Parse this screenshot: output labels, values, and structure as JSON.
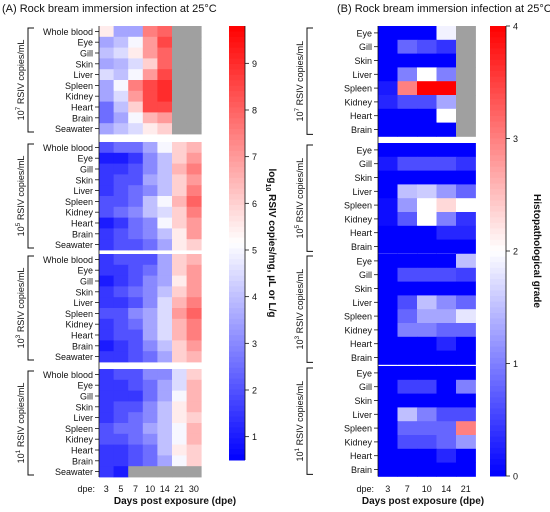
{
  "chart_data": [
    {
      "type": "heatmap",
      "title": "(A) Rock bream immersion infection at 25°C",
      "xlabel": "Days post exposure (dpe)",
      "x_prefix": "dpe:",
      "x": [
        "3",
        "5",
        "7",
        "10",
        "14",
        "21",
        "30"
      ],
      "rows": [
        "Whole blood",
        "Eye",
        "Gill",
        "Skin",
        "Liver",
        "Spleen",
        "Kidney",
        "Heart",
        "Brain",
        "Seawater"
      ],
      "colorbar": {
        "label": "log10 RSIV copies/mg, µL or L/g",
        "label_main": "log",
        "label_sub": "10",
        "label_rest": " RSIV copies/mg, µL or L/g",
        "min": 0.5,
        "max": 9.8,
        "ticks": [
          1,
          2,
          3,
          4,
          5,
          6,
          7,
          8,
          9
        ],
        "colors": {
          "low": "#0000ff",
          "mid": "#ffffff",
          "high": "#ff0000",
          "na": "#a0a0a0"
        }
      },
      "groups": [
        {
          "label_pre": "10",
          "label_exp": "7",
          "label_post": " RSIV copies/mL",
          "values": [
            [
              5.5,
              3.5,
              3.5,
              7.5,
              8.0,
              null,
              null
            ],
            [
              3.5,
              4.0,
              5.0,
              7.0,
              8.5,
              null,
              null
            ],
            [
              4.0,
              4.5,
              5.5,
              7.0,
              8.0,
              null,
              null
            ],
            [
              3.5,
              3.8,
              4.5,
              6.0,
              8.0,
              null,
              null
            ],
            [
              4.5,
              4.0,
              5.0,
              7.0,
              8.5,
              null,
              null
            ],
            [
              3.5,
              5.0,
              7.5,
              8.5,
              9.0,
              null,
              null
            ],
            [
              3.5,
              4.5,
              7.0,
              8.5,
              9.0,
              null,
              null
            ],
            [
              2.5,
              4.0,
              6.0,
              8.5,
              8.5,
              null,
              null
            ],
            [
              2.5,
              3.5,
              5.0,
              6.5,
              7.0,
              null,
              null
            ],
            [
              3.5,
              4.0,
              4.5,
              5.5,
              6.0,
              null,
              null
            ]
          ]
        },
        {
          "label_pre": "10",
          "label_exp": "5",
          "label_post": " RSIV copies/mL",
          "values": [
            [
              2.0,
              2.5,
              2.5,
              3.5,
              5.0,
              6.0,
              6.5
            ],
            [
              1.0,
              1.0,
              1.5,
              3.0,
              4.0,
              6.0,
              7.0
            ],
            [
              1.5,
              1.5,
              2.0,
              3.0,
              4.0,
              6.5,
              7.5
            ],
            [
              1.5,
              2.0,
              2.0,
              3.5,
              4.0,
              6.0,
              7.0
            ],
            [
              1.5,
              2.0,
              2.5,
              3.0,
              4.0,
              6.0,
              7.5
            ],
            [
              2.0,
              2.0,
              2.5,
              4.0,
              5.0,
              6.5,
              8.0
            ],
            [
              2.0,
              2.5,
              3.0,
              4.0,
              4.5,
              6.0,
              7.5
            ],
            [
              1.0,
              1.5,
              2.5,
              3.0,
              5.0,
              6.0,
              7.0
            ],
            [
              1.5,
              2.0,
              2.5,
              3.0,
              4.0,
              5.5,
              7.0
            ],
            [
              1.5,
              2.0,
              2.0,
              2.5,
              3.5,
              5.5,
              6.0
            ]
          ]
        },
        {
          "label_pre": "10",
          "label_exp": "3",
          "label_post": " RSIV copies/mL",
          "values": [
            [
              1.5,
              2.0,
              2.0,
              2.0,
              3.5,
              6.0,
              6.5
            ],
            [
              1.5,
              1.5,
              2.0,
              2.5,
              3.5,
              6.0,
              7.0
            ],
            [
              1.0,
              1.5,
              2.0,
              3.0,
              3.5,
              5.5,
              7.0
            ],
            [
              1.5,
              2.0,
              2.5,
              3.0,
              4.0,
              6.0,
              7.0
            ],
            [
              1.5,
              1.5,
              2.0,
              3.0,
              4.5,
              6.5,
              7.5
            ],
            [
              2.0,
              2.0,
              3.0,
              3.5,
              4.5,
              7.0,
              8.0
            ],
            [
              1.5,
              2.0,
              2.5,
              3.5,
              4.5,
              6.5,
              7.5
            ],
            [
              1.5,
              2.0,
              2.0,
              3.5,
              4.5,
              6.5,
              7.5
            ],
            [
              1.0,
              1.5,
              2.0,
              3.0,
              4.0,
              6.0,
              7.0
            ],
            [
              1.5,
              1.5,
              2.0,
              2.5,
              3.5,
              6.0,
              6.5
            ]
          ]
        },
        {
          "label_pre": "10",
          "label_exp": "1",
          "label_post": " RSIV copies/mL",
          "values": [
            [
              1.5,
              2.0,
              2.0,
              3.0,
              3.0,
              4.5,
              6.0
            ],
            [
              1.5,
              1.5,
              2.0,
              2.5,
              3.5,
              4.5,
              6.5
            ],
            [
              1.5,
              1.5,
              1.5,
              2.5,
              3.5,
              5.0,
              6.5
            ],
            [
              1.5,
              2.0,
              2.0,
              3.0,
              4.0,
              5.5,
              6.5
            ],
            [
              1.5,
              2.0,
              2.5,
              3.0,
              4.0,
              5.5,
              6.0
            ],
            [
              2.0,
              2.5,
              2.5,
              3.5,
              4.0,
              5.0,
              6.5
            ],
            [
              2.0,
              2.0,
              2.5,
              3.0,
              4.0,
              5.0,
              6.5
            ],
            [
              1.5,
              1.5,
              2.0,
              2.5,
              4.0,
              5.5,
              6.0
            ],
            [
              1.5,
              1.5,
              2.0,
              2.5,
              3.5,
              5.0,
              6.0
            ],
            [
              1.5,
              1.0,
              null,
              null,
              null,
              null,
              null
            ]
          ]
        }
      ]
    },
    {
      "type": "heatmap",
      "title": "(B) Rock bream immersion infection at 25°C",
      "xlabel": "Days post exposure (dpe)",
      "x_prefix": "dpe:",
      "x": [
        "3",
        "7",
        "10",
        "14",
        "21"
      ],
      "rows": [
        "Eye",
        "Gill",
        "Skin",
        "Liver",
        "Spleen",
        "Kidney",
        "Heart",
        "Brain"
      ],
      "colorbar": {
        "label": "Histopathological grade",
        "min": 0,
        "max": 4,
        "ticks": [
          0,
          1,
          2,
          3,
          4
        ],
        "colors": {
          "low": "#0000ff",
          "mid": "#ffffff",
          "high": "#ff0000",
          "na": "#a0a0a0"
        }
      },
      "groups": [
        {
          "label_pre": "10",
          "label_exp": "7",
          "label_post": " RSIV copies/mL",
          "values": [
            [
              0,
              0,
              0,
              1.9,
              null
            ],
            [
              0,
              0.8,
              0.6,
              0.4,
              null
            ],
            [
              0,
              0,
              0,
              0,
              null
            ],
            [
              0,
              1.0,
              2.0,
              1.0,
              null
            ],
            [
              0.2,
              3.0,
              4.0,
              4.0,
              null
            ],
            [
              0.3,
              0.6,
              0.6,
              1.3,
              null
            ],
            [
              0,
              0,
              0,
              2.0,
              null
            ],
            [
              0,
              0,
              0,
              0,
              null
            ]
          ]
        },
        {
          "label_pre": "10",
          "label_exp": "5",
          "label_post": " RSIV copies/mL",
          "values": [
            [
              0,
              0,
              0,
              0,
              0
            ],
            [
              0.2,
              0.6,
              0.6,
              0.6,
              0.4
            ],
            [
              0,
              0,
              0,
              0,
              0
            ],
            [
              0,
              1.5,
              1.6,
              1.2,
              0.8
            ],
            [
              0.1,
              1.2,
              2.0,
              2.3,
              2.0
            ],
            [
              0.1,
              0.7,
              2.0,
              1.0,
              0.4
            ],
            [
              0,
              0,
              0,
              0.3,
              0.3
            ],
            [
              0,
              0,
              0,
              0,
              0
            ]
          ]
        },
        {
          "label_pre": "10",
          "label_exp": "3",
          "label_post": " RSIV copies/mL",
          "values": [
            [
              0,
              0,
              0,
              0,
              1.5
            ],
            [
              0,
              0.6,
              0.6,
              0.6,
              0.5
            ],
            [
              0,
              0,
              0,
              0,
              0
            ],
            [
              0,
              0.6,
              1.5,
              1.1,
              0.8
            ],
            [
              0,
              0.8,
              1.3,
              1.3,
              1.8
            ],
            [
              0,
              1.0,
              1.0,
              0.8,
              0.8
            ],
            [
              0,
              0,
              0,
              0.3,
              0
            ],
            [
              0,
              0,
              0,
              0,
              0
            ]
          ]
        },
        {
          "label_pre": "10",
          "label_exp": "1",
          "label_post": " RSIV copies/mL",
          "values": [
            [
              0,
              0,
              0,
              0,
              0
            ],
            [
              0,
              0.5,
              0.5,
              0,
              1.0
            ],
            [
              0,
              0,
              0,
              0,
              0
            ],
            [
              0,
              1.5,
              1.0,
              0.6,
              0.6
            ],
            [
              0,
              0.8,
              0.8,
              0.8,
              3.0
            ],
            [
              0,
              0.6,
              0.6,
              0.8,
              1.2
            ],
            [
              0,
              0,
              0,
              0.3,
              0
            ],
            [
              0,
              0,
              0,
              0,
              0
            ]
          ]
        }
      ]
    }
  ]
}
